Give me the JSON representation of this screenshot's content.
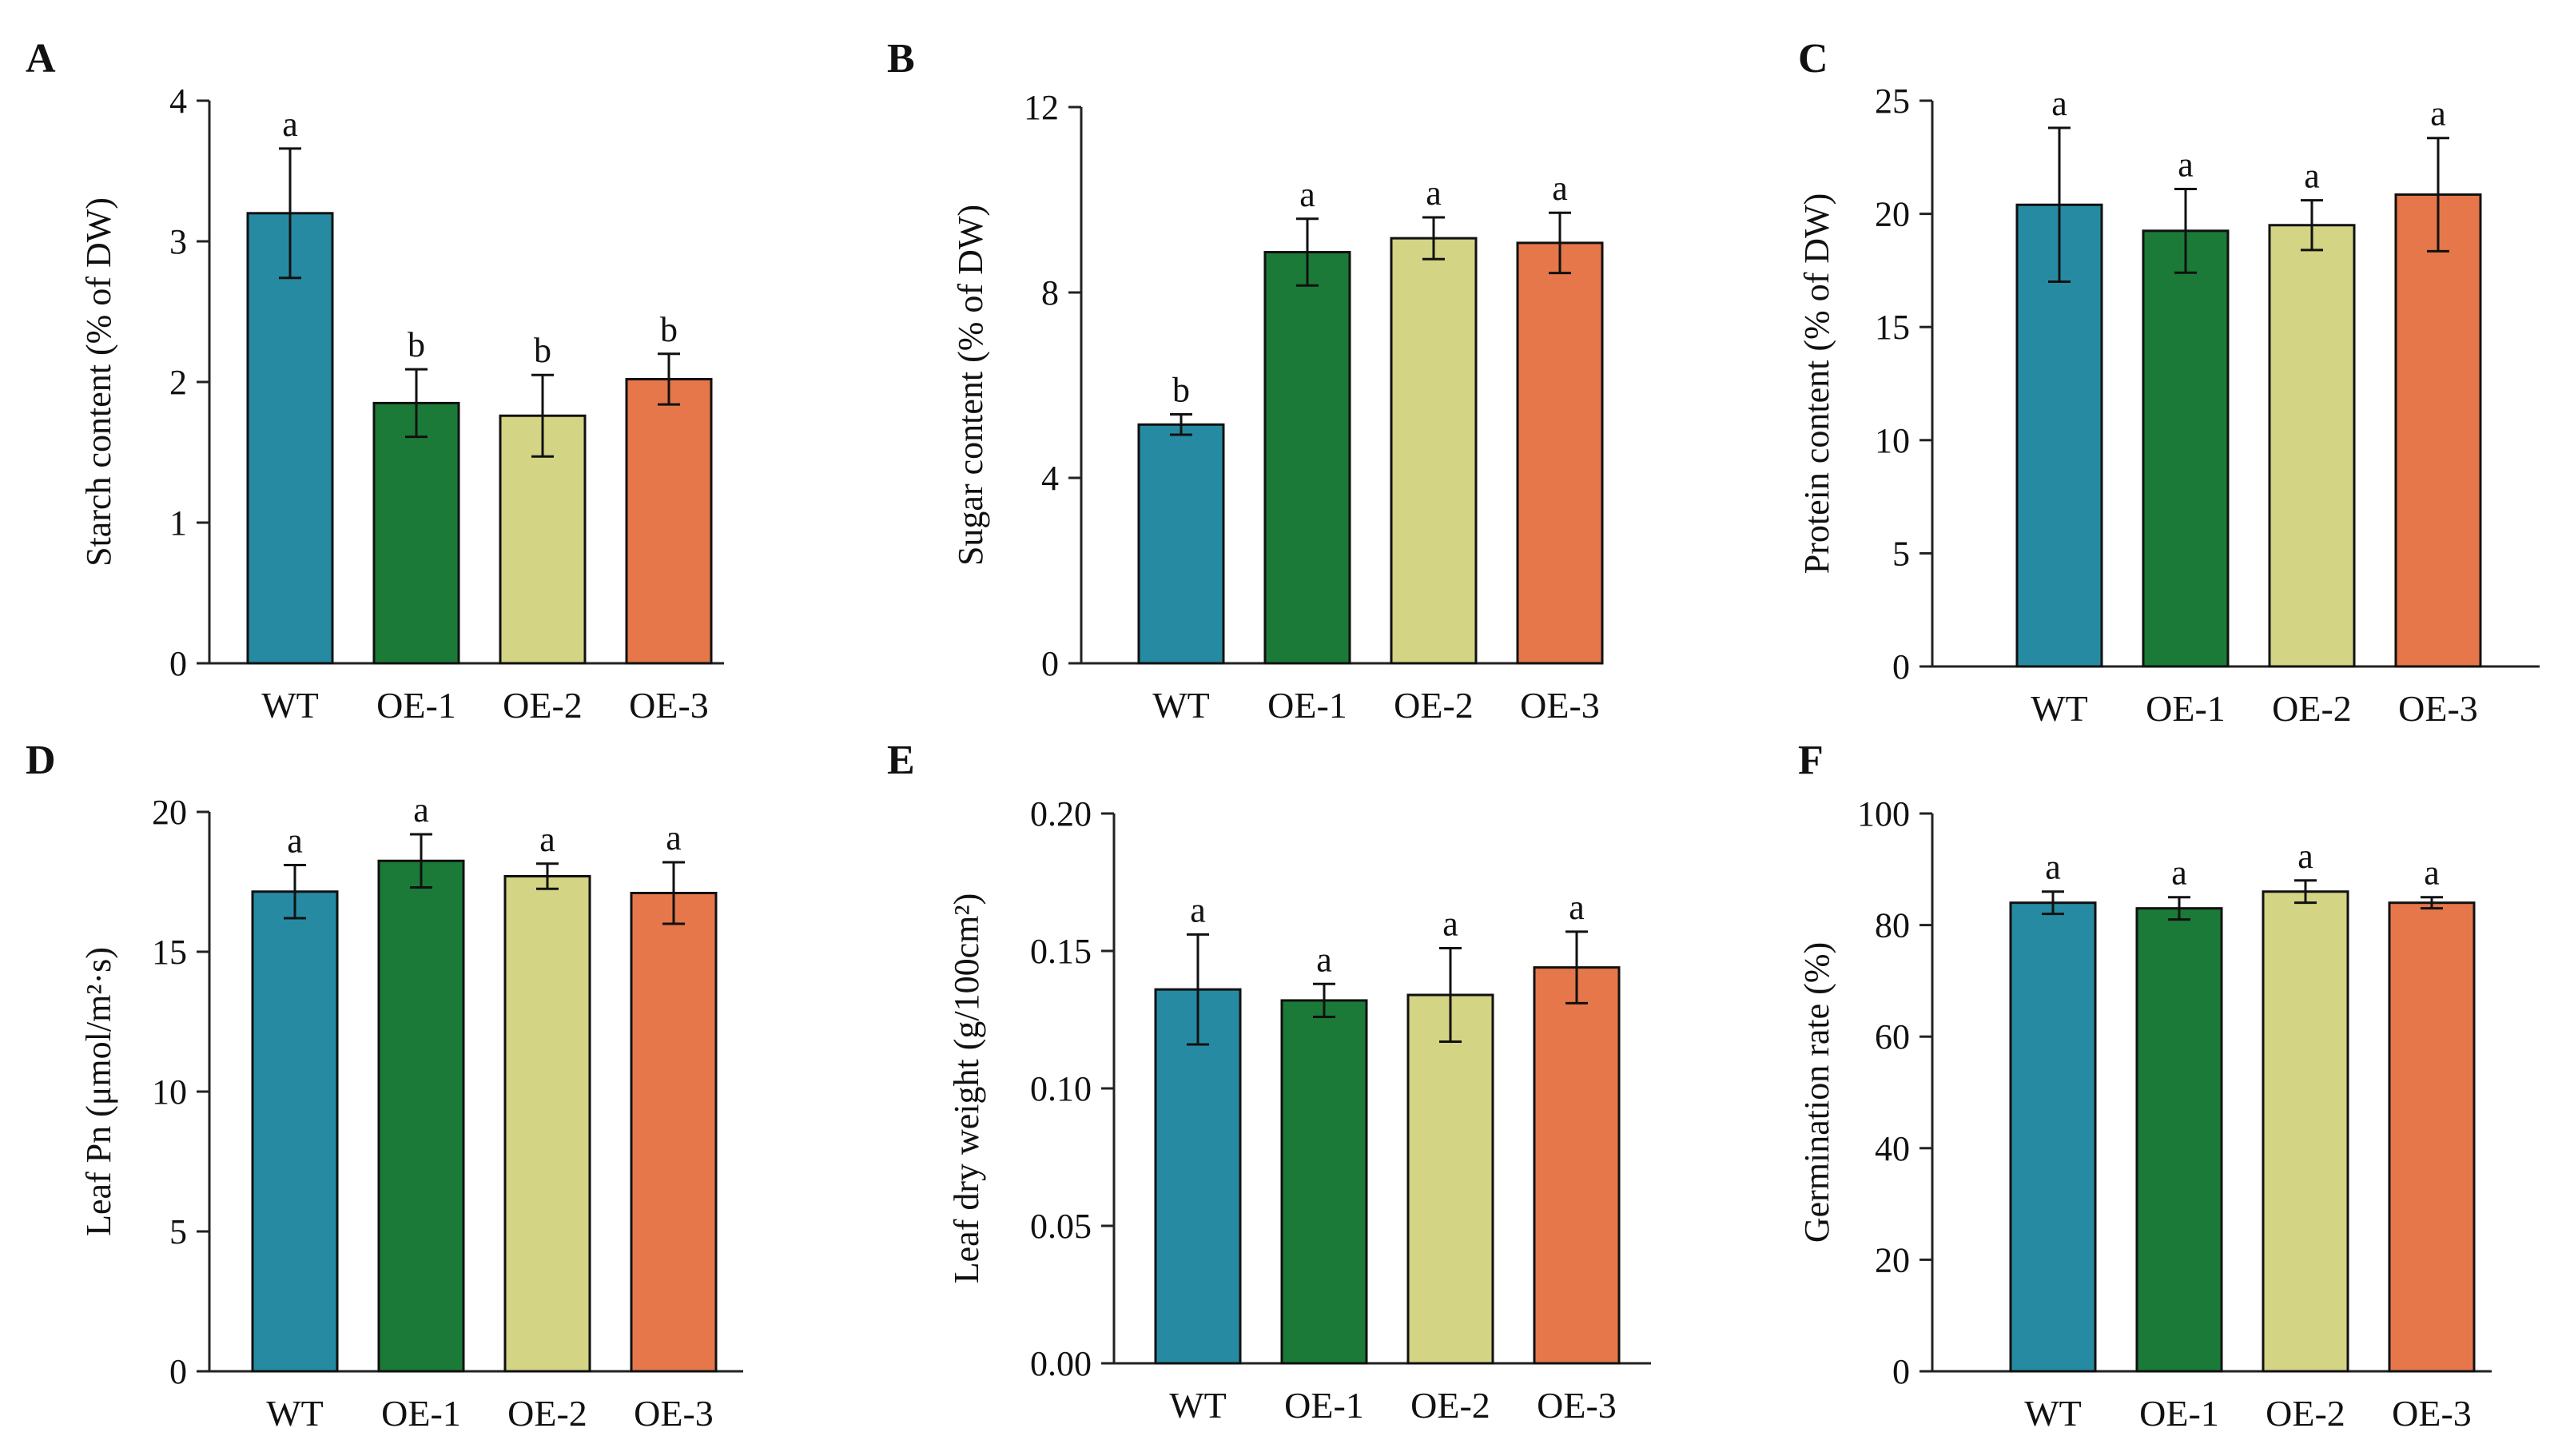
{
  "chart_data": [
    {
      "panel": "A",
      "type": "bar",
      "categories": [
        "WT",
        "OE-1",
        "OE-2",
        "OE-3"
      ],
      "values": [
        3.2,
        1.85,
        1.76,
        2.02
      ],
      "errors": [
        0.46,
        0.24,
        0.29,
        0.18
      ],
      "significance": [
        "a",
        "b",
        "b",
        "b"
      ],
      "ylabel": "Starch content (% of DW)",
      "ylim": [
        0,
        4
      ],
      "yticks": [
        "0",
        "1",
        "2",
        "3",
        "4"
      ],
      "colors": [
        "#268ba2",
        "#1b7a37",
        "#d3d484",
        "#e6774a"
      ]
    },
    {
      "panel": "B",
      "type": "bar",
      "categories": [
        "WT",
        "OE-1",
        "OE-2",
        "OE-3"
      ],
      "values": [
        5.15,
        8.87,
        9.17,
        9.07
      ],
      "errors": [
        0.22,
        0.72,
        0.45,
        0.65
      ],
      "significance": [
        "b",
        "a",
        "a",
        "a"
      ],
      "ylabel": "Sugar content (% of DW)",
      "ylim": [
        0,
        12
      ],
      "yticks": [
        "0",
        "4",
        "8",
        "12"
      ],
      "colors": [
        "#268ba2",
        "#1b7a37",
        "#d3d484",
        "#e6774a"
      ]
    },
    {
      "panel": "C",
      "type": "bar",
      "categories": [
        "WT",
        "OE-1",
        "OE-2",
        "OE-3"
      ],
      "values": [
        20.4,
        19.25,
        19.5,
        20.85
      ],
      "errors": [
        3.4,
        1.85,
        1.1,
        2.5
      ],
      "significance": [
        "a",
        "a",
        "a",
        "a"
      ],
      "ylabel": "Protein content (% of DW)",
      "ylim": [
        0,
        25
      ],
      "yticks": [
        "0",
        "5",
        "10",
        "15",
        "20",
        "25"
      ],
      "colors": [
        "#268ba2",
        "#1b7a37",
        "#d3d484",
        "#e6774a"
      ]
    },
    {
      "panel": "D",
      "type": "bar",
      "categories": [
        "WT",
        "OE-1",
        "OE-2",
        "OE-3"
      ],
      "values": [
        17.15,
        18.25,
        17.7,
        17.1
      ],
      "errors": [
        0.95,
        0.95,
        0.45,
        1.1
      ],
      "significance": [
        "a",
        "a",
        "a",
        "a"
      ],
      "ylabel": "Leaf Pn (μmol/m²·s)",
      "ylim": [
        0,
        20
      ],
      "yticks": [
        "0",
        "5",
        "10",
        "15",
        "20"
      ],
      "colors": [
        "#268ba2",
        "#1b7a37",
        "#d3d484",
        "#e6774a"
      ]
    },
    {
      "panel": "E",
      "type": "bar",
      "categories": [
        "WT",
        "OE-1",
        "OE-2",
        "OE-3"
      ],
      "values": [
        0.136,
        0.132,
        0.134,
        0.144
      ],
      "errors": [
        0.02,
        0.006,
        0.017,
        0.013
      ],
      "significance": [
        "a",
        "a",
        "a",
        "a"
      ],
      "ylabel": "Leaf dry weight  (g/100cm²)",
      "ylim": [
        0,
        0.2
      ],
      "yticks": [
        "0.00",
        "0.05",
        "0.10",
        "0.15",
        "0.20"
      ],
      "colors": [
        "#268ba2",
        "#1b7a37",
        "#d3d484",
        "#e6774a"
      ]
    },
    {
      "panel": "F",
      "type": "bar",
      "categories": [
        "WT",
        "OE-1",
        "OE-2",
        "OE-3"
      ],
      "values": [
        84,
        83,
        86,
        84
      ],
      "errors": [
        2,
        2,
        2,
        1
      ],
      "significance": [
        "a",
        "a",
        "a",
        "a"
      ],
      "ylabel": "Germination rate (%)",
      "ylim": [
        0,
        100
      ],
      "yticks": [
        "0",
        "20",
        "40",
        "60",
        "80",
        "100"
      ],
      "colors": [
        "#268ba2",
        "#1b7a37",
        "#d3d484",
        "#e6774a"
      ]
    }
  ]
}
